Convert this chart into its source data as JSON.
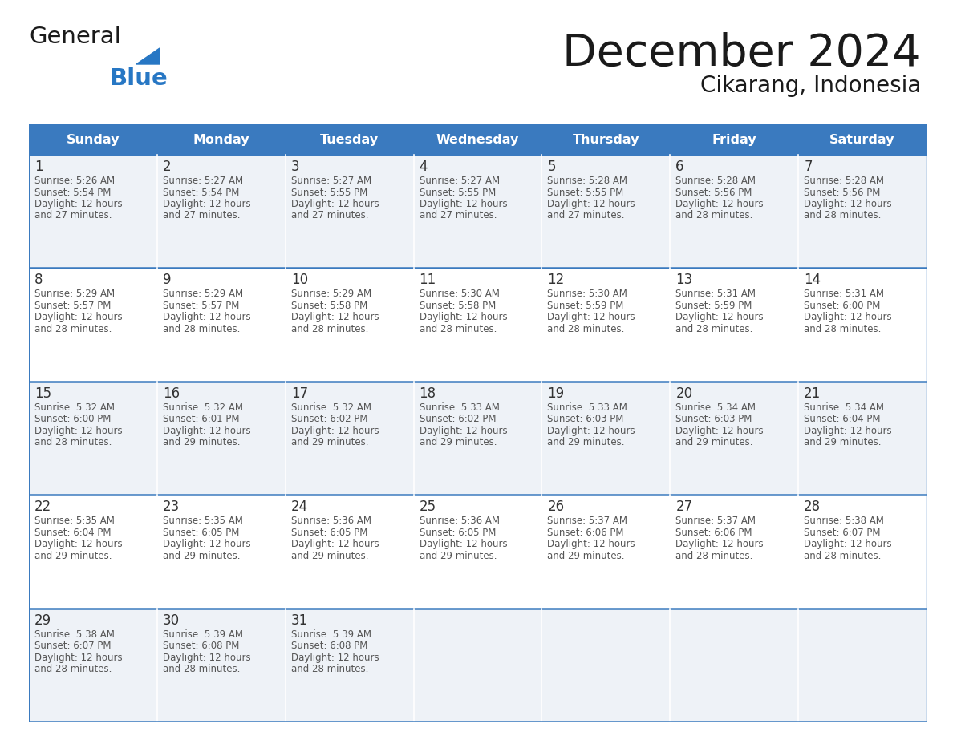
{
  "title": "December 2024",
  "subtitle": "Cikarang, Indonesia",
  "header_color": "#3a7abf",
  "header_text_color": "#ffffff",
  "day_names": [
    "Sunday",
    "Monday",
    "Tuesday",
    "Wednesday",
    "Thursday",
    "Friday",
    "Saturday"
  ],
  "background_color": "#ffffff",
  "cell_bg_odd": "#eef2f7",
  "cell_bg_even": "#ffffff",
  "border_color": "#3a7abf",
  "day_number_color": "#333333",
  "text_color": "#555555",
  "logo_general_color": "#1a1a1a",
  "logo_blue_color": "#2777c4",
  "weeks": [
    [
      {
        "day": 1,
        "sunrise": "5:26 AM",
        "sunset": "5:54 PM",
        "daylight": "12 hours and 27 minutes."
      },
      {
        "day": 2,
        "sunrise": "5:27 AM",
        "sunset": "5:54 PM",
        "daylight": "12 hours and 27 minutes."
      },
      {
        "day": 3,
        "sunrise": "5:27 AM",
        "sunset": "5:55 PM",
        "daylight": "12 hours and 27 minutes."
      },
      {
        "day": 4,
        "sunrise": "5:27 AM",
        "sunset": "5:55 PM",
        "daylight": "12 hours and 27 minutes."
      },
      {
        "day": 5,
        "sunrise": "5:28 AM",
        "sunset": "5:55 PM",
        "daylight": "12 hours and 27 minutes."
      },
      {
        "day": 6,
        "sunrise": "5:28 AM",
        "sunset": "5:56 PM",
        "daylight": "12 hours and 28 minutes."
      },
      {
        "day": 7,
        "sunrise": "5:28 AM",
        "sunset": "5:56 PM",
        "daylight": "12 hours and 28 minutes."
      }
    ],
    [
      {
        "day": 8,
        "sunrise": "5:29 AM",
        "sunset": "5:57 PM",
        "daylight": "12 hours and 28 minutes."
      },
      {
        "day": 9,
        "sunrise": "5:29 AM",
        "sunset": "5:57 PM",
        "daylight": "12 hours and 28 minutes."
      },
      {
        "day": 10,
        "sunrise": "5:29 AM",
        "sunset": "5:58 PM",
        "daylight": "12 hours and 28 minutes."
      },
      {
        "day": 11,
        "sunrise": "5:30 AM",
        "sunset": "5:58 PM",
        "daylight": "12 hours and 28 minutes."
      },
      {
        "day": 12,
        "sunrise": "5:30 AM",
        "sunset": "5:59 PM",
        "daylight": "12 hours and 28 minutes."
      },
      {
        "day": 13,
        "sunrise": "5:31 AM",
        "sunset": "5:59 PM",
        "daylight": "12 hours and 28 minutes."
      },
      {
        "day": 14,
        "sunrise": "5:31 AM",
        "sunset": "6:00 PM",
        "daylight": "12 hours and 28 minutes."
      }
    ],
    [
      {
        "day": 15,
        "sunrise": "5:32 AM",
        "sunset": "6:00 PM",
        "daylight": "12 hours and 28 minutes."
      },
      {
        "day": 16,
        "sunrise": "5:32 AM",
        "sunset": "6:01 PM",
        "daylight": "12 hours and 29 minutes."
      },
      {
        "day": 17,
        "sunrise": "5:32 AM",
        "sunset": "6:02 PM",
        "daylight": "12 hours and 29 minutes."
      },
      {
        "day": 18,
        "sunrise": "5:33 AM",
        "sunset": "6:02 PM",
        "daylight": "12 hours and 29 minutes."
      },
      {
        "day": 19,
        "sunrise": "5:33 AM",
        "sunset": "6:03 PM",
        "daylight": "12 hours and 29 minutes."
      },
      {
        "day": 20,
        "sunrise": "5:34 AM",
        "sunset": "6:03 PM",
        "daylight": "12 hours and 29 minutes."
      },
      {
        "day": 21,
        "sunrise": "5:34 AM",
        "sunset": "6:04 PM",
        "daylight": "12 hours and 29 minutes."
      }
    ],
    [
      {
        "day": 22,
        "sunrise": "5:35 AM",
        "sunset": "6:04 PM",
        "daylight": "12 hours and 29 minutes."
      },
      {
        "day": 23,
        "sunrise": "5:35 AM",
        "sunset": "6:05 PM",
        "daylight": "12 hours and 29 minutes."
      },
      {
        "day": 24,
        "sunrise": "5:36 AM",
        "sunset": "6:05 PM",
        "daylight": "12 hours and 29 minutes."
      },
      {
        "day": 25,
        "sunrise": "5:36 AM",
        "sunset": "6:05 PM",
        "daylight": "12 hours and 29 minutes."
      },
      {
        "day": 26,
        "sunrise": "5:37 AM",
        "sunset": "6:06 PM",
        "daylight": "12 hours and 29 minutes."
      },
      {
        "day": 27,
        "sunrise": "5:37 AM",
        "sunset": "6:06 PM",
        "daylight": "12 hours and 28 minutes."
      },
      {
        "day": 28,
        "sunrise": "5:38 AM",
        "sunset": "6:07 PM",
        "daylight": "12 hours and 28 minutes."
      }
    ],
    [
      {
        "day": 29,
        "sunrise": "5:38 AM",
        "sunset": "6:07 PM",
        "daylight": "12 hours and 28 minutes."
      },
      {
        "day": 30,
        "sunrise": "5:39 AM",
        "sunset": "6:08 PM",
        "daylight": "12 hours and 28 minutes."
      },
      {
        "day": 31,
        "sunrise": "5:39 AM",
        "sunset": "6:08 PM",
        "daylight": "12 hours and 28 minutes."
      },
      null,
      null,
      null,
      null
    ]
  ],
  "figsize": [
    11.88,
    9.18
  ],
  "dpi": 100
}
